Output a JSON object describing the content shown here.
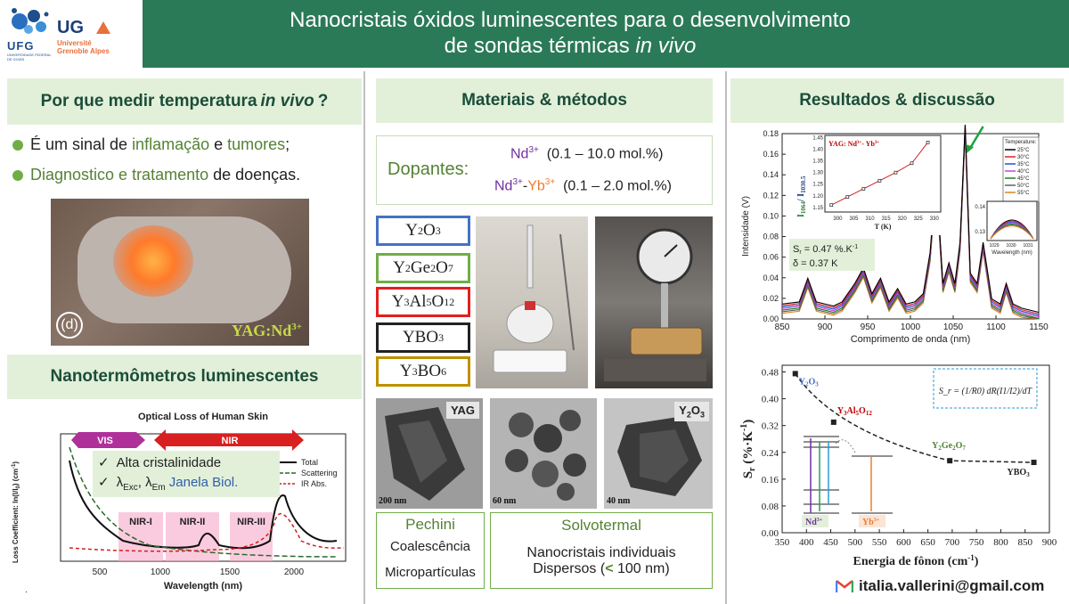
{
  "header": {
    "title_line1": "Nanocristais óxidos luminescentes para o desenvolvimento",
    "title_line2_pre": "de sondas térmicas ",
    "title_line2_em": "in vivo",
    "logo_ufg": "UFG",
    "logo_ufg_sub": "UNIVERSIDADE FEDERAL DE GOIÁS",
    "logo_uga": "UG",
    "logo_uga_sub1": "Université",
    "logo_uga_sub2": "Grenoble Alpes"
  },
  "left": {
    "why_title_pre": "Por que medir temperatura ",
    "why_title_em": "in vivo",
    "why_title_post": " ?",
    "b1_a": "É um sinal de ",
    "b1_b": "inflamação",
    "b1_c": " e ",
    "b1_d": "tumores",
    "b1_e": ";",
    "b2_a": "Diagnostico e tratamento",
    "b2_b": " de doenças.",
    "mouse_panel": "(d)",
    "mouse_label": "YAG:Nd",
    "mouse_label_sup": "3+",
    "nano_title": "Nanotermômetros luminescentes",
    "skin_chart_title": "Optical Loss of Human Skin",
    "skin_ylabel": "Loss Coefficient: ln(I/I",
    "skin_ylabel_sub": "0",
    "skin_ylabel_post": ") (cm",
    "skin_ylabel_sup": "-1",
    "skin_ylabel_end": ")",
    "skin_xlabel": "Wavelength (nm)",
    "skin_xticks": [
      "500",
      "1000",
      "1500",
      "2000"
    ],
    "skin_vis": "VIS",
    "skin_nir": "NIR",
    "skin_windows": [
      "NIR-I",
      "NIR-II",
      "NIR-III"
    ],
    "skin_legend": [
      "Total",
      "Scattering",
      "IR Abs."
    ],
    "check1": "Alta cristalinidade",
    "check2_a": "λ",
    "check2_sub1": "Exc",
    "check2_b": ", λ",
    "check2_sub2": "Em",
    "check2_c": " Janela Biol.",
    "check_mark": "✓",
    "footnote": "."
  },
  "middle": {
    "title": "Materiais & métodos",
    "dop_label": "Dopantes:",
    "dop1_ion": "Nd",
    "dop1_sup": "3+",
    "dop1_range": "  (0.1 – 10.0 mol.%)",
    "dop2_ion1": "Nd",
    "dop2_sup1": "3+",
    "dop2_dash": "-",
    "dop2_ion2": "Yb",
    "dop2_sup2": "3+",
    "dop2_range": "  (0.1 – 2.0 mol.%)",
    "materials": [
      {
        "a": "Y",
        "s1": "2",
        "b": "O",
        "s2": "3",
        "c": "",
        "s3": "",
        "d": "",
        "s4": "",
        "color": "#4472c4"
      },
      {
        "a": "Y",
        "s1": "2",
        "b": "Ge",
        "s2": "2",
        "c": "O",
        "s3": "7",
        "d": "",
        "s4": "",
        "color": "#70ad47"
      },
      {
        "a": "Y",
        "s1": "3",
        "b": "Al",
        "s2": "5",
        "c": "O",
        "s3": "12",
        "d": "",
        "s4": "",
        "color": "#e02020"
      },
      {
        "a": "YBO",
        "s1": "3",
        "b": "",
        "s2": "",
        "c": "",
        "s3": "",
        "d": "",
        "s4": "",
        "color": "#222222"
      },
      {
        "a": "Y",
        "s1": "3",
        "b": "BO",
        "s2": "6",
        "c": "",
        "s3": "",
        "d": "",
        "s4": "",
        "color": "#bf9000"
      }
    ],
    "tem1_label": "YAG",
    "tem1_scale": "200 nm",
    "tem2_scale": "60 nm",
    "tem3_label_a": "Y",
    "tem3_label_s1": "2",
    "tem3_label_b": "O",
    "tem3_label_s2": "3",
    "tem3_scale": "40 nm",
    "pechini": "Pechini",
    "coalescencia": "Coalescência",
    "microparticulas": "Micropartículas",
    "solvotermal": "Solvotermal",
    "nano_ind": "Nanocristais individuais",
    "dispersos_pre": "Dispersos (",
    "dispersos_lt": "<",
    "dispersos_post": " 100 nm)"
  },
  "right": {
    "title": "Resultados & discussão",
    "email": "italia.vallerini@gmail.com"
  },
  "chart_data": [
    {
      "type": "line",
      "title": "",
      "xlabel": "Comprimento de onda (nm)",
      "ylabel": "Intensidade (V)",
      "xlim": [
        850,
        1150
      ],
      "ylim": [
        0,
        0.18
      ],
      "xticks": [
        850,
        900,
        950,
        1000,
        1050,
        1100,
        1150
      ],
      "yticks": [
        0.0,
        0.02,
        0.04,
        0.06,
        0.08,
        0.1,
        0.12,
        0.14,
        0.16,
        0.18
      ],
      "legend_title": "Temperature:",
      "legend_position": "top-right",
      "series": [
        {
          "name": "25°C",
          "color": "#000000"
        },
        {
          "name": "30°C",
          "color": "#e02020"
        },
        {
          "name": "35°C",
          "color": "#2050e0"
        },
        {
          "name": "40°C",
          "color": "#d040d0"
        },
        {
          "name": "45°C",
          "color": "#208020"
        },
        {
          "name": "50°C",
          "color": "#606060"
        },
        {
          "name": "55°C",
          "color": "#e08020"
        }
      ],
      "x": [
        850,
        870,
        880,
        890,
        900,
        910,
        920,
        935,
        945,
        955,
        965,
        975,
        985,
        995,
        1005,
        1015,
        1023,
        1030,
        1038,
        1045,
        1052,
        1058,
        1064,
        1070,
        1078,
        1085,
        1095,
        1105,
        1112,
        1120,
        1130,
        1150
      ],
      "values": [
        0.01,
        0.012,
        0.035,
        0.012,
        0.01,
        0.008,
        0.012,
        0.03,
        0.045,
        0.02,
        0.035,
        0.012,
        0.025,
        0.01,
        0.012,
        0.02,
        0.06,
        0.135,
        0.03,
        0.05,
        0.03,
        0.07,
        0.185,
        0.04,
        0.03,
        0.07,
        0.015,
        0.01,
        0.03,
        0.01,
        0.006,
        0.002
      ],
      "annotations": [
        "S",
        "r",
        " = 0.47 %.K",
        "-1",
        "δ = 0.37 K"
      ],
      "inset1": {
        "title_pre": "YAG: Nd",
        "title_sup1": "3+",
        "title_mid": "- Yb",
        "title_sup2": "3+",
        "xlabel": "T (K)",
        "ylabel_a": "I",
        "ylabel_sub1": "1064",
        "ylabel_b": "/ I",
        "ylabel_sub2": "1030.5",
        "xticks": [
          "300",
          "305",
          "310",
          "315",
          "320",
          "325",
          "330"
        ],
        "yticks": [
          "1.15",
          "1.20",
          "1.25",
          "1.30",
          "1.35",
          "1.40",
          "1.45"
        ],
        "x": [
          298,
          303,
          308,
          313,
          318,
          323,
          328
        ],
        "values": [
          1.16,
          1.195,
          1.23,
          1.265,
          1.3,
          1.34,
          1.43
        ]
      },
      "inset2": {
        "xlabel": "Wavelength (nm)",
        "xticks": [
          "1029",
          "1030",
          "1031"
        ],
        "yticks": [
          "0.14",
          "0.13"
        ]
      }
    },
    {
      "type": "scatter",
      "title": "",
      "xlabel": "Energia de fônon (cm",
      "xlabel_sup": "-1",
      "xlabel_end": ")",
      "ylabel": "S",
      "ylabel_sub": "r",
      "ylabel_post": " (%·K",
      "ylabel_sup": "-1",
      "ylabel_end": ")",
      "xlim": [
        350,
        900
      ],
      "ylim": [
        0,
        0.5
      ],
      "xticks": [
        350,
        400,
        450,
        500,
        550,
        600,
        650,
        700,
        750,
        800,
        850,
        900
      ],
      "yticks": [
        0.0,
        0.08,
        0.16,
        0.24,
        0.32,
        0.4,
        0.48
      ],
      "points": [
        {
          "x": 377,
          "y": 0.475,
          "label_a": "Y",
          "label_s1": "2",
          "label_b": "O",
          "label_s2": "3",
          "label_c": "",
          "label_s3": ""
        },
        {
          "x": 456,
          "y": 0.33,
          "label_a": "Y",
          "label_s1": "3",
          "label_b": "Al",
          "label_s2": "5",
          "label_c": "O",
          "label_s3": "12"
        },
        {
          "x": 695,
          "y": 0.215,
          "label_a": "Y",
          "label_s1": "2",
          "label_b": "Ge",
          "label_s2": "2",
          "label_c": "O",
          "label_s3": "7"
        },
        {
          "x": 868,
          "y": 0.21,
          "label_a": "YBO",
          "label_s1": "3",
          "label_b": "",
          "label_s2": "",
          "label_c": "",
          "label_s3": ""
        }
      ],
      "formula": "S_r = (1/R0) dR(I1/I2)/dT",
      "nd_label": "Nd",
      "nd_sup": "3+",
      "yb_label": "Yb",
      "yb_sup": "3+"
    }
  ]
}
